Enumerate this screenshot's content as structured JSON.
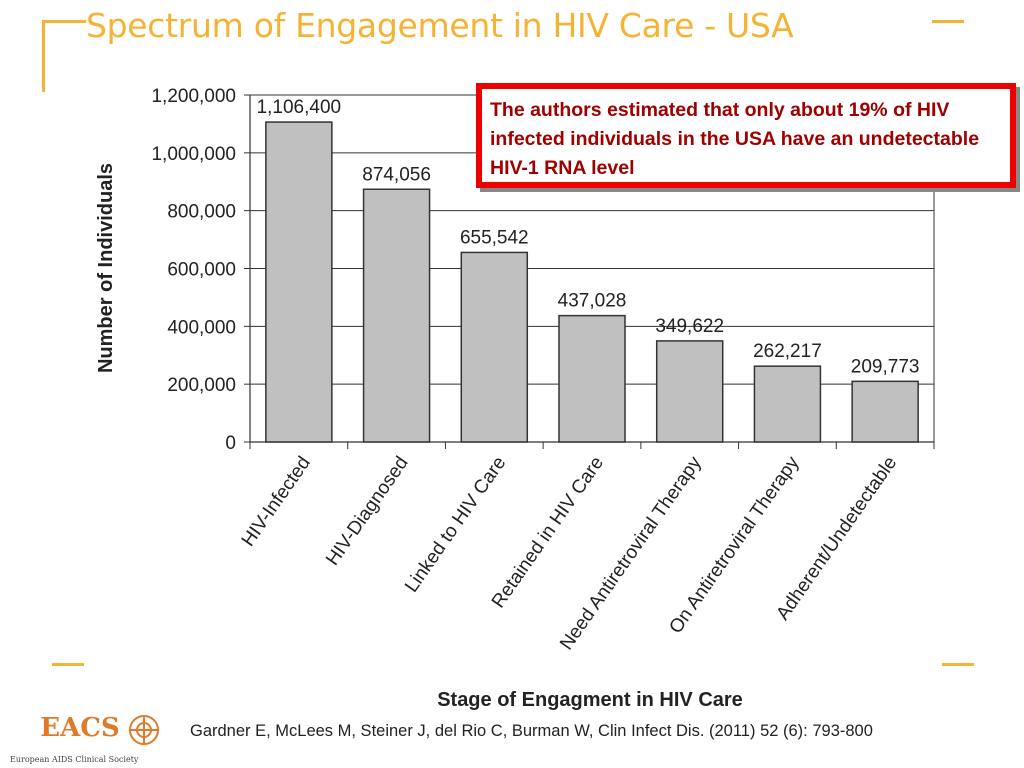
{
  "slide": {
    "title": "Spectrum of Engagement in HIV Care - USA",
    "callout": "The authors estimated that only about 19% of HIV infected individuals in the USA have an undetectable HIV-1 RNA level",
    "citation": "Gardner E, McLees M, Steiner J, del Rio C, Burman W, Clin Infect Dis. (2011) 52 (6): 793-800",
    "logo": {
      "letters": "EACS",
      "caption": "European AIDS Clinical Society"
    }
  },
  "colors": {
    "title": "#f5b335",
    "frame": "#f5b335",
    "bar_fill": "#c0c0c0",
    "bar_stroke": "#333333",
    "callout_border": "#ee0000",
    "callout_text": "#a00000",
    "logo_accent": "#e07a2a"
  },
  "chart_data": {
    "type": "bar",
    "title": "",
    "xlabel": "Stage of Engagment in HIV Care",
    "ylabel": "Number of Individuals",
    "ylim": [
      0,
      1200000
    ],
    "yticks": [
      0,
      200000,
      400000,
      600000,
      800000,
      1000000,
      1200000
    ],
    "ytick_labels": [
      "0",
      "200,000",
      "400,000",
      "600,000",
      "800,000",
      "1,000,000",
      "1,200,000"
    ],
    "grid": true,
    "categories": [
      "HIV-Infected",
      "HIV-Diagnosed",
      "Linked to HIV Care",
      "Retained in HIV Care",
      "Need Antiretroviral Therapy",
      "On Antiretroviral Therapy",
      "Adherent/Undetectable"
    ],
    "values": [
      1106400,
      874056,
      655542,
      437028,
      349622,
      262217,
      209773
    ],
    "data_labels": [
      "1,106,400",
      "874,056",
      "655,542",
      "437,028",
      "349,622",
      "262,217",
      "209,773"
    ]
  }
}
